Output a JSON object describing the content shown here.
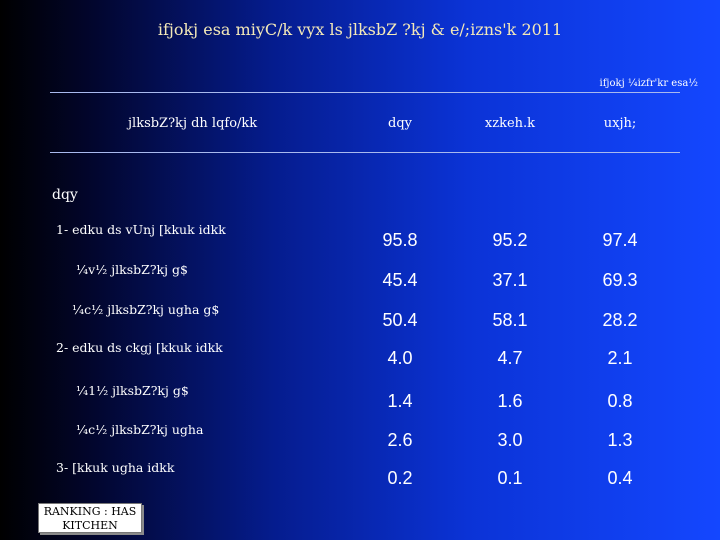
{
  "title": "ifjokj esa miyC/k vyx ls jlksbZ ?kj & e/;izns'k 2011",
  "unit_note": "ifjokj ¼izfr'kr esa½",
  "table": {
    "headers": [
      "jlksbZ?kj dh lqfo/kk",
      "dqy",
      "xzkeh.k",
      "uxjh;"
    ],
    "section_label": "dqy",
    "rows": [
      {
        "label": "1- edku ds vUnj [kkuk idkk",
        "values": [
          "95.8",
          "95.2",
          "97.4"
        ]
      },
      {
        "label": "¼v½ jlksbZ?kj g$",
        "values": [
          "45.4",
          "37.1",
          "69.3"
        ]
      },
      {
        "label": "¼c½ jlksbZ?kj ugha g$",
        "values": [
          "50.4",
          "58.1",
          "28.2"
        ]
      },
      {
        "label": "2- edku ds ckgj [kkuk idkk",
        "values": [
          "4.0",
          "4.7",
          "2.1"
        ]
      },
      {
        "label": "¼1½ jlksbZ?kj g$",
        "values": [
          "1.4",
          "1.6",
          "0.8"
        ]
      },
      {
        "label": "¼c½ jlksbZ?kj ugha",
        "values": [
          "2.6",
          "3.0",
          "1.3"
        ]
      },
      {
        "label": "3- [kkuk ugha idkk",
        "values": [
          "0.2",
          "0.1",
          "0.4"
        ]
      }
    ]
  },
  "stamp": {
    "line1": "RANKING : HAS",
    "line2": "KITCHEN"
  }
}
